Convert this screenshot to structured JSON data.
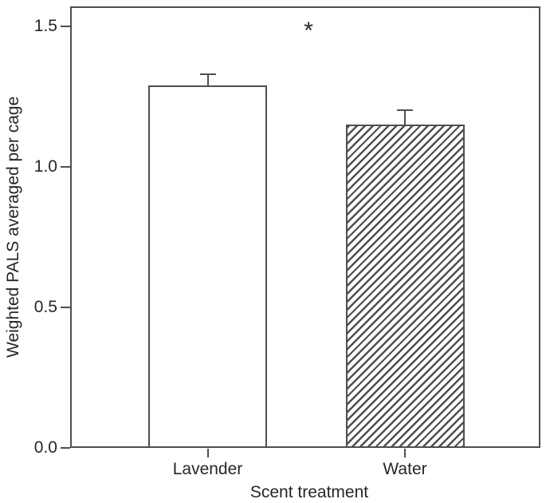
{
  "figure": {
    "background": "#ffffff",
    "line_color": "#4d4f52",
    "text_color": "#262626"
  },
  "chart_data": {
    "type": "bar",
    "title": "",
    "xlabel": "Scent treatment",
    "ylabel": "Weighted PALS averaged per cage",
    "categories": [
      "Lavender",
      "Water"
    ],
    "values": [
      1.29,
      1.15
    ],
    "errors_upper": [
      0.04,
      0.05
    ],
    "ylim": [
      0,
      1.57
    ],
    "yticks": [
      "0.0",
      "0.5",
      "1.0",
      "1.5"
    ],
    "bar_fills": [
      "plain",
      "hatched"
    ],
    "annotation": {
      "text": "*",
      "y_value": 1.49,
      "x_fraction_of_plot": 0.507
    },
    "grid": false,
    "legend": "none"
  }
}
